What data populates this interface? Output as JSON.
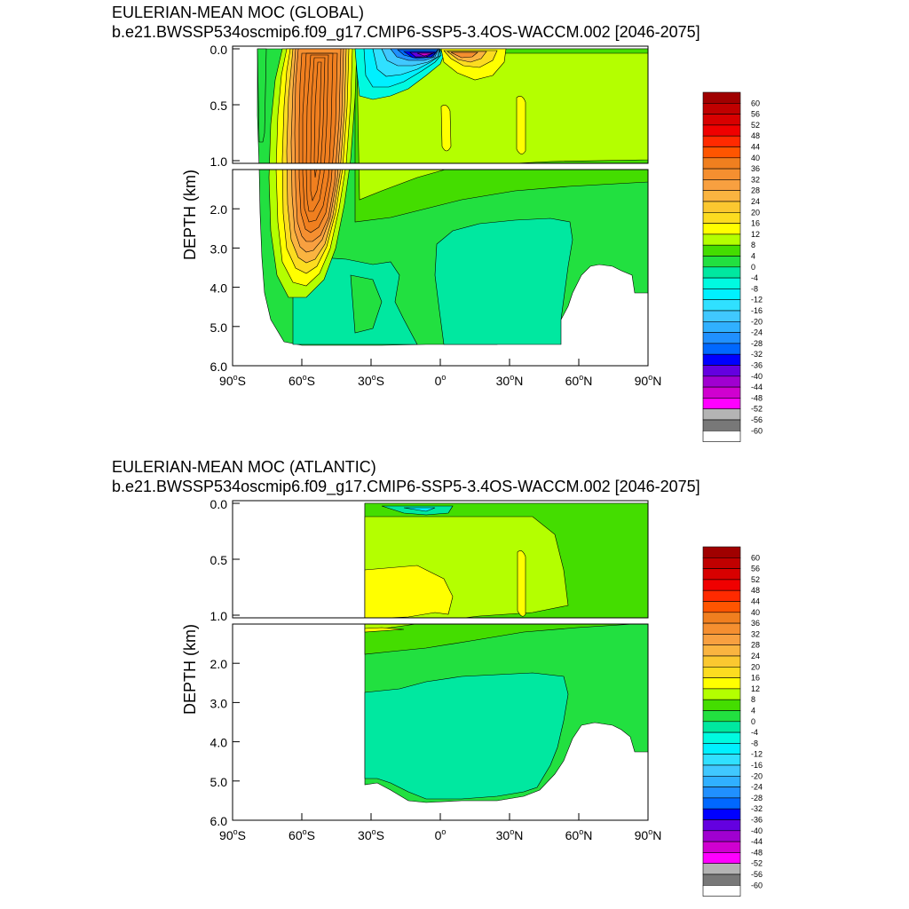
{
  "chart_data": [
    {
      "type": "contour",
      "title": "EULERIAN-MEAN MOC (GLOBAL)",
      "subtitle": "b.e21.BWSSP534oscmip6.f09_g17.CMIP6-SSP5-3.4OS-WACCM.002 [2046-2075]",
      "ylabel": "DEPTH (km)",
      "xlim": [
        -90,
        90
      ],
      "ylim_upper": [
        0,
        1
      ],
      "ylim_lower": [
        1,
        6
      ],
      "upper_ticks": [
        "0.0",
        "0.5",
        "1.0"
      ],
      "lower_ticks": [
        "2.0",
        "3.0",
        "4.0",
        "5.0",
        "6.0"
      ],
      "x_ticks": [
        "90",
        "60",
        "30",
        "0",
        "30",
        "60",
        "90"
      ],
      "x_tick_hemi": [
        "S",
        "S",
        "S",
        "",
        "N",
        "N",
        "N"
      ],
      "contour_levels": [
        -60,
        -56,
        -52,
        -48,
        -44,
        -40,
        -36,
        -32,
        -28,
        -24,
        -20,
        -16,
        -12,
        -8,
        -4,
        0,
        4,
        8,
        12,
        16,
        20,
        24,
        28,
        32,
        36,
        40,
        44,
        48,
        52,
        56,
        60
      ],
      "features": [
        {
          "name": "Southern Ocean cell",
          "lat": -55,
          "depth_km": 1.5,
          "peak_value": 40
        },
        {
          "name": "Tropical surface negative cell",
          "lat": -8,
          "depth_km": 0.05,
          "peak_value": -36
        },
        {
          "name": "Northern surface positive cell",
          "lat": 10,
          "depth_km": 0.05,
          "peak_value": 16
        },
        {
          "name": "Deep abyssal cell",
          "lat": 15,
          "depth_km": 4.0,
          "peak_value": -4
        }
      ]
    },
    {
      "type": "contour",
      "title": "EULERIAN-MEAN MOC (ATLANTIC)",
      "subtitle": "b.e21.BWSSP534oscmip6.f09_g17.CMIP6-SSP5-3.4OS-WACCM.002 [2046-2075]",
      "ylabel": "DEPTH (km)",
      "xlim": [
        -90,
        90
      ],
      "ylim_upper": [
        0,
        1
      ],
      "ylim_lower": [
        1,
        6
      ],
      "upper_ticks": [
        "0.0",
        "0.5",
        "1.0"
      ],
      "lower_ticks": [
        "2.0",
        "3.0",
        "4.0",
        "5.0",
        "6.0"
      ],
      "x_ticks": [
        "90",
        "60",
        "30",
        "0",
        "30",
        "60",
        "90"
      ],
      "x_tick_hemi": [
        "S",
        "S",
        "S",
        "",
        "N",
        "N",
        "N"
      ],
      "contour_levels": [
        -60,
        -56,
        -52,
        -48,
        -44,
        -40,
        -36,
        -32,
        -28,
        -24,
        -20,
        -16,
        -12,
        -8,
        -4,
        0,
        4,
        8,
        12,
        16,
        20,
        24,
        28,
        32,
        36,
        40,
        44,
        48,
        52,
        56,
        60
      ],
      "features": [
        {
          "name": "Upper Atlantic overturning cell",
          "lat": -10,
          "depth_km": 0.8,
          "peak_value": 16
        },
        {
          "name": "Deep Atlantic cell",
          "lat": 0,
          "depth_km": 4.0,
          "peak_value": -4
        }
      ]
    }
  ],
  "colorbar": {
    "labels": [
      "60",
      "56",
      "52",
      "48",
      "44",
      "40",
      "36",
      "32",
      "28",
      "24",
      "20",
      "16",
      "12",
      "8",
      "4",
      "0",
      "-4",
      "-8",
      "-12",
      "-16",
      "-20",
      "-24",
      "-28",
      "-32",
      "-36",
      "-40",
      "-44",
      "-48",
      "-52",
      "-56",
      "-60"
    ],
    "colors": [
      "#a00000",
      "#c00000",
      "#d80000",
      "#f00000",
      "#ff2a00",
      "#ff5500",
      "#f07f1f",
      "#f58f30",
      "#f8a040",
      "#fab440",
      "#fbc830",
      "#fcdc20",
      "#ffff00",
      "#b4ff00",
      "#44dd00",
      "#22e040",
      "#00e8a0",
      "#00fae0",
      "#00f0ff",
      "#30e0ff",
      "#40c8ff",
      "#30b0ff",
      "#2090ff",
      "#0068ff",
      "#0000ff",
      "#6400e0",
      "#a000d0",
      "#d000d0",
      "#ff00ff",
      "#b4b4b4",
      "#787878",
      "#ffffff"
    ]
  },
  "colors": {
    "land": "#ffffff",
    "frame": "#000000",
    "contour_line": "#000000"
  }
}
